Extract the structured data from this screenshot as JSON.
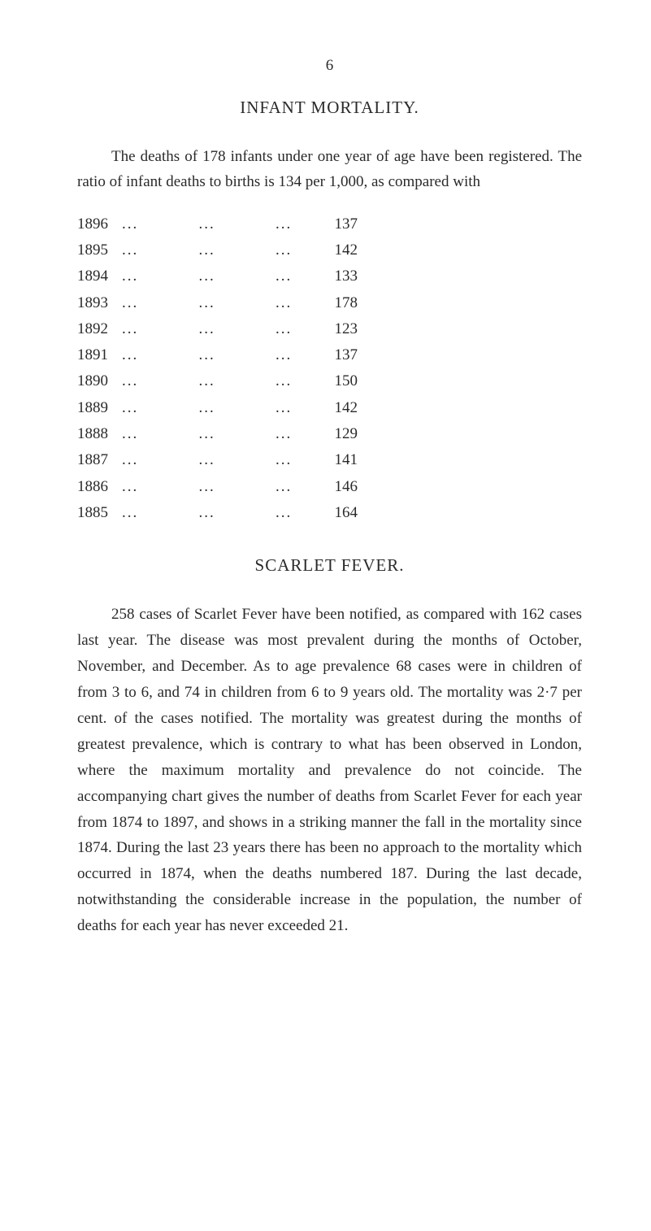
{
  "page_number": "6",
  "section1": {
    "title": "INFANT MORTALITY.",
    "intro": "The deaths of 178 infants under one year of age have been registered. The ratio of infant deaths to births is 134 per 1,000, as compared with",
    "table": {
      "rows": [
        {
          "year": "1896",
          "value": "137"
        },
        {
          "year": "1895",
          "value": "142"
        },
        {
          "year": "1894",
          "value": "133"
        },
        {
          "year": "1893",
          "value": "178"
        },
        {
          "year": "1892",
          "value": "123"
        },
        {
          "year": "1891",
          "value": "137"
        },
        {
          "year": "1890",
          "value": "150"
        },
        {
          "year": "1889",
          "value": "142"
        },
        {
          "year": "1888",
          "value": "129"
        },
        {
          "year": "1887",
          "value": "141"
        },
        {
          "year": "1886",
          "value": "146"
        },
        {
          "year": "1885",
          "value": "164"
        }
      ],
      "dots_text": "...           ...           ..."
    }
  },
  "section2": {
    "title": "SCARLET FEVER.",
    "body": "258 cases of Scarlet Fever have been notified, as compared with 162 cases last year. The disease was most prevalent during the months of October, November, and December. As to age prevalence 68 cases were in children of from 3 to 6, and 74 in children from 6 to 9 years old. The mortality was 2·7 per cent. of the cases notified. The mortality was greatest during the months of greatest prevalence, which is contrary to what has been observed in London, where the maximum mortality and prevalence do not coincide. The accompanying chart gives the number of deaths from Scarlet Fever for each year from 1874 to 1897, and shows in a striking manner the fall in the mortality since 1874. During the last 23 years there has been no approach to the mortality which occurred in 1874, when the deaths numbered 187. During the last decade, notwithstanding the considerable increase in the population, the number of deaths for each year has never exceeded 21."
  }
}
